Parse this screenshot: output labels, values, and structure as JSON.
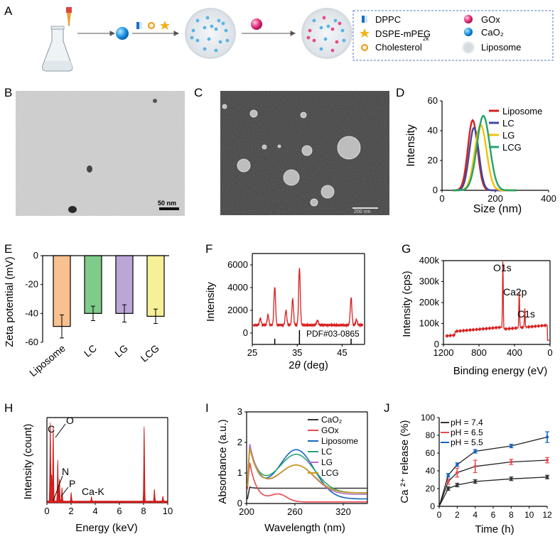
{
  "panel_letters": [
    "A",
    "B",
    "C",
    "D",
    "E",
    "F",
    "G",
    "H",
    "I",
    "J"
  ],
  "legend_a": {
    "dppc": "DPPC",
    "dspe": "DSPE-mPEG",
    "dspe_sub": "2k",
    "cholesterol": "Cholesterol",
    "gox": "GOx",
    "cao2": "CaO₂",
    "liposome": "Liposome"
  },
  "scalebar_b": "50 nm",
  "scalebar_c": "200 nm",
  "colors": {
    "red": "#d81e1e",
    "purple": "#3e4a9c",
    "yellow": "#f2c20a",
    "green": "#23a36a",
    "blue": "#1565c0",
    "black": "#333333"
  },
  "chart_data": [
    {
      "panel": "D",
      "type": "line",
      "xlabel": "Size (nm)",
      "ylabel": "Intensity",
      "xlim": [
        0,
        400
      ],
      "ylim": [
        0,
        60
      ],
      "xticks": [
        "0",
        "200",
        "400"
      ],
      "yticks": [
        "0",
        "20",
        "40",
        "60"
      ],
      "series": [
        {
          "name": "Liposome",
          "color": "#d81e1e",
          "peak_x": 115,
          "peak_y": 47,
          "width": 18
        },
        {
          "name": "LC",
          "color": "#3e4a9c",
          "peak_x": 120,
          "peak_y": 42,
          "width": 18
        },
        {
          "name": "LG",
          "color": "#f2c20a",
          "peak_x": 145,
          "peak_y": 44,
          "width": 22
        },
        {
          "name": "LCG",
          "color": "#23a36a",
          "peak_x": 155,
          "peak_y": 50,
          "width": 24
        }
      ]
    },
    {
      "panel": "E",
      "type": "bar",
      "ylabel": "Zeta potential (mV)",
      "ylim": [
        -60,
        0
      ],
      "yticks": [
        "0",
        "-20",
        "-40",
        "-60"
      ],
      "categories": [
        "Liposome",
        "LC",
        "LG",
        "LCG"
      ],
      "values": [
        -49,
        -40,
        -40,
        -42
      ],
      "errors": [
        8,
        5,
        6,
        5
      ],
      "bar_colors": [
        "#f8c18f",
        "#7ecb8a",
        "#bba6d6",
        "#f6f199"
      ]
    },
    {
      "panel": "F",
      "type": "line",
      "xlabel": "2θ (deg)",
      "ylabel": "Intensity",
      "xlim": [
        25,
        50
      ],
      "ylim": [
        -1000,
        7000
      ],
      "xticks": [
        "25",
        "35",
        "45"
      ],
      "yticks": [
        "0",
        "2000",
        "4000",
        "6000"
      ],
      "reference_label": "PDF#03-0865",
      "reference_peaks": [
        30,
        35.5,
        47
      ],
      "baseline": 700,
      "peaks": [
        [
          26.8,
          600
        ],
        [
          28.5,
          900
        ],
        [
          30.0,
          3400
        ],
        [
          32.5,
          1300
        ],
        [
          34.0,
          2300
        ],
        [
          35.5,
          5000
        ],
        [
          39.5,
          400
        ],
        [
          47.0,
          2400
        ],
        [
          48.2,
          500
        ]
      ]
    },
    {
      "panel": "G",
      "type": "line",
      "xlabel": "Binding energy (eV)",
      "ylabel": "Intensity (cps)",
      "xlim": [
        1200,
        0
      ],
      "ylim": [
        0,
        400000
      ],
      "xticks": [
        "1200",
        "800",
        "400",
        "0"
      ],
      "yticks": [
        "0",
        "100k",
        "200k",
        "300k",
        "400k"
      ],
      "annotations": [
        "O1s",
        "Ca2p",
        "C1s"
      ],
      "peaks": [
        [
          531,
          330000
        ],
        [
          347,
          180000
        ],
        [
          285,
          95000
        ]
      ]
    },
    {
      "panel": "H",
      "type": "bar",
      "xlabel": "Energy (keV)",
      "ylabel": "Intensity (count)",
      "xlim": [
        0,
        10
      ],
      "xticks": [
        "0",
        "2",
        "4",
        "6",
        "8",
        "10"
      ],
      "annotations": [
        "C",
        "O",
        "N",
        "P",
        "Ca-K"
      ],
      "peaks": [
        [
          0.28,
          0.92
        ],
        [
          0.52,
          0.88
        ],
        [
          0.39,
          0.3
        ],
        [
          0.9,
          0.48
        ],
        [
          1.04,
          0.26
        ],
        [
          1.25,
          0.16
        ],
        [
          2.01,
          0.1
        ],
        [
          3.69,
          0.05
        ],
        [
          8.05,
          0.88
        ],
        [
          8.9,
          0.14
        ],
        [
          9.6,
          0.06
        ]
      ]
    },
    {
      "panel": "I",
      "type": "line",
      "xlabel": "Wavelength (nm)",
      "ylabel": "Absorbance (a.u.)",
      "xlim": [
        200,
        350
      ],
      "ylim": [
        0,
        3
      ],
      "xticks": [
        "200",
        "260",
        "320"
      ],
      "yticks": [
        "0",
        "1",
        "2",
        "3"
      ],
      "series": [
        {
          "name": "CaO₂",
          "color": "#333333"
        },
        {
          "name": "GOx",
          "color": "#e8494e"
        },
        {
          "name": "Liposome",
          "color": "#1565c0"
        },
        {
          "name": "LC",
          "color": "#2aa36e"
        },
        {
          "name": "LG",
          "color": "#b070c8"
        },
        {
          "name": "LCG",
          "color": "#c89a1a"
        }
      ]
    },
    {
      "panel": "J",
      "type": "line",
      "xlabel": "Time (h)",
      "ylabel": "Ca ²⁺ release (%)",
      "xlim": [
        0,
        12
      ],
      "ylim": [
        0,
        100
      ],
      "xticks": [
        "0",
        "2",
        "4",
        "6",
        "8",
        "10",
        "12"
      ],
      "yticks": [
        "0",
        "20",
        "40",
        "60",
        "80",
        "100"
      ],
      "x": [
        0,
        1,
        2,
        4,
        8,
        12
      ],
      "series": [
        {
          "name": "pH = 7.4",
          "color": "#333333",
          "values": [
            0,
            20,
            24,
            28,
            31,
            33
          ],
          "errors": [
            0,
            2,
            2,
            2,
            2,
            2
          ]
        },
        {
          "name": "pH = 6.5",
          "color": "#e8494e",
          "values": [
            0,
            28,
            38,
            45,
            50,
            52
          ],
          "errors": [
            0,
            3,
            5,
            7,
            3,
            3
          ]
        },
        {
          "name": "pH = 5.5",
          "color": "#1565c0",
          "values": [
            0,
            35,
            47,
            62,
            68,
            78
          ],
          "errors": [
            0,
            2,
            2,
            2,
            2,
            6
          ]
        }
      ]
    }
  ]
}
